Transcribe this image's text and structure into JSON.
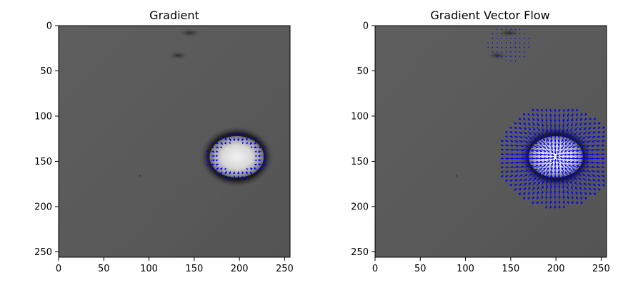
{
  "chart_data": [
    {
      "type": "heatmap",
      "title": "Gradient",
      "xlim": [
        0,
        256
      ],
      "ylim": [
        256,
        0
      ],
      "xticks": [
        0,
        50,
        100,
        150,
        200,
        250
      ],
      "yticks": [
        0,
        50,
        100,
        150,
        200,
        250
      ],
      "colormap": "gray",
      "image_features": {
        "background_level": 0.36,
        "bright_blob": {
          "cx": 197,
          "cy": 145,
          "rx": 30,
          "ry": 23
        },
        "dark_halo": {
          "rx": 42,
          "ry": 35
        },
        "dark_spots": [
          {
            "x": 145,
            "y": 8,
            "rx": 14,
            "ry": 5
          },
          {
            "x": 132,
            "y": 33,
            "rx": 12,
            "ry": 5
          },
          {
            "x": 90,
            "y": 166,
            "rx": 2,
            "ry": 2
          }
        ]
      },
      "vector_field": {
        "color": "#0000ff",
        "kind": "gradient",
        "center": [
          197,
          145
        ],
        "ring_radii": [
          30,
          23
        ],
        "grid_step": 5
      }
    },
    {
      "type": "heatmap",
      "title": "Gradient Vector Flow",
      "xlim": [
        0,
        256
      ],
      "ylim": [
        256,
        0
      ],
      "xticks": [
        0,
        50,
        100,
        150,
        200,
        250
      ],
      "yticks": [
        0,
        50,
        100,
        150,
        200,
        250
      ],
      "colormap": "gray",
      "image_features": {
        "background_level": 0.36,
        "bright_blob": {
          "cx": 200,
          "cy": 145,
          "rx": 30,
          "ry": 23
        },
        "dark_halo": {
          "rx": 42,
          "ry": 35
        },
        "dark_spots": [
          {
            "x": 148,
            "y": 8,
            "rx": 14,
            "ry": 5
          },
          {
            "x": 135,
            "y": 33,
            "rx": 12,
            "ry": 5
          },
          {
            "x": 90,
            "y": 166,
            "rx": 2,
            "ry": 2
          }
        ]
      },
      "vector_field": {
        "color": "#0000ff",
        "kind": "gradient-vector-flow",
        "center": [
          200,
          145
        ],
        "extent_radii": [
          66,
          58
        ],
        "grid_step": 5
      }
    }
  ]
}
